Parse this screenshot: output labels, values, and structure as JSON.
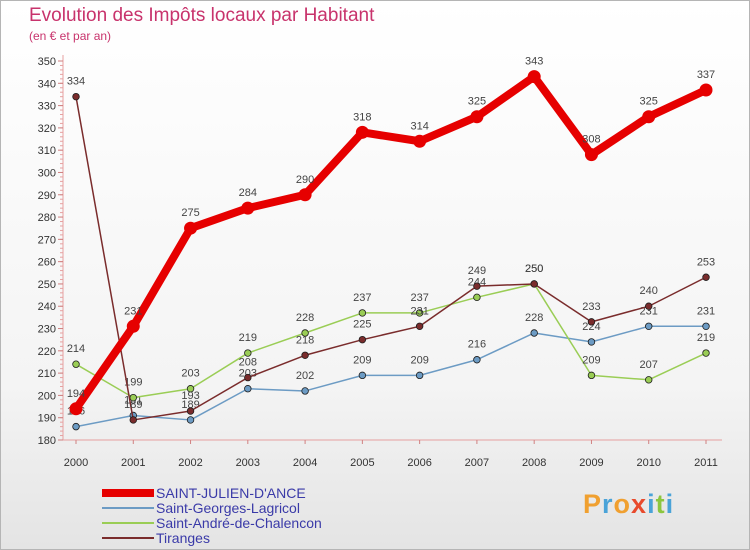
{
  "chart_data": {
    "type": "line",
    "title": "Evolution des Impôts locaux par Habitant",
    "subtitle": "(en € et par an)",
    "x": [
      "2000",
      "2001",
      "2002",
      "2003",
      "2004",
      "2005",
      "2006",
      "2007",
      "2008",
      "2009",
      "2010",
      "2011"
    ],
    "ylim": [
      180,
      350
    ],
    "yticks": [
      180,
      190,
      200,
      210,
      220,
      230,
      240,
      250,
      260,
      270,
      280,
      290,
      300,
      310,
      320,
      330,
      340,
      350
    ],
    "grid": false,
    "legend_position": "bottom-left",
    "series": [
      {
        "name": "SAINT-JULIEN-D'ANCE",
        "color": "#e60000",
        "values": [
          194,
          231,
          275,
          284,
          290,
          318,
          314,
          325,
          343,
          308,
          325,
          337
        ]
      },
      {
        "name": "Saint-Georges-Lagricol",
        "color": "#6c9bc4",
        "values": [
          186,
          191,
          189,
          203,
          202,
          209,
          209,
          216,
          228,
          224,
          231,
          231
        ]
      },
      {
        "name": "Saint-André-de-Chalencon",
        "color": "#9acd55",
        "values": [
          214,
          199,
          203,
          219,
          228,
          237,
          237,
          244,
          250,
          209,
          207,
          219
        ]
      },
      {
        "name": "Tiranges",
        "color": "#7a2c2c",
        "values": [
          334,
          189,
          193,
          208,
          218,
          225,
          231,
          249,
          250,
          233,
          240,
          253
        ]
      }
    ]
  },
  "logo": {
    "letters": [
      "P",
      "r",
      "o",
      "x",
      "i",
      "t",
      "i"
    ],
    "colors": [
      "#f0a030",
      "#4aa3d8",
      "#f0a030",
      "#e84a2c",
      "#4aa3d8",
      "#8cc63f",
      "#4aa3d8"
    ]
  }
}
